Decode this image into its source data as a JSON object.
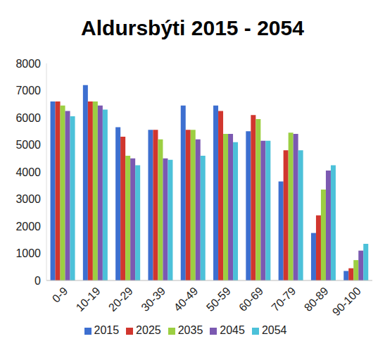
{
  "chart_data": {
    "type": "bar",
    "title": "Aldursbýti 2015 - 2054",
    "categories": [
      "0-9",
      "10-19",
      "20-29",
      "30-39",
      "40-49",
      "50-59",
      "60-69",
      "70-79",
      "80-89",
      "90-100"
    ],
    "series": [
      {
        "name": "2015",
        "color": "#3d6fd0",
        "values": [
          6600,
          7200,
          5650,
          5550,
          6450,
          6450,
          5500,
          3650,
          1750,
          350
        ]
      },
      {
        "name": "2025",
        "color": "#d1362e",
        "values": [
          6600,
          6600,
          5300,
          5550,
          5550,
          6250,
          6100,
          4800,
          2400,
          450
        ]
      },
      {
        "name": "2035",
        "color": "#9ccf42",
        "values": [
          6450,
          6600,
          4600,
          5200,
          5550,
          5400,
          5950,
          5450,
          3350,
          750
        ]
      },
      {
        "name": "2045",
        "color": "#7b59b1",
        "values": [
          6250,
          6450,
          4500,
          4500,
          5200,
          5400,
          5150,
          5400,
          4050,
          1100
        ]
      },
      {
        "name": "2054",
        "color": "#4cc1d9",
        "values": [
          6050,
          6300,
          4250,
          4450,
          4600,
          5100,
          5150,
          4800,
          4250,
          1350
        ]
      }
    ],
    "ylim": [
      0,
      8000
    ],
    "yticks": [
      0,
      1000,
      2000,
      3000,
      4000,
      5000,
      6000,
      7000,
      8000
    ],
    "grid": false,
    "legend": "bottom"
  }
}
